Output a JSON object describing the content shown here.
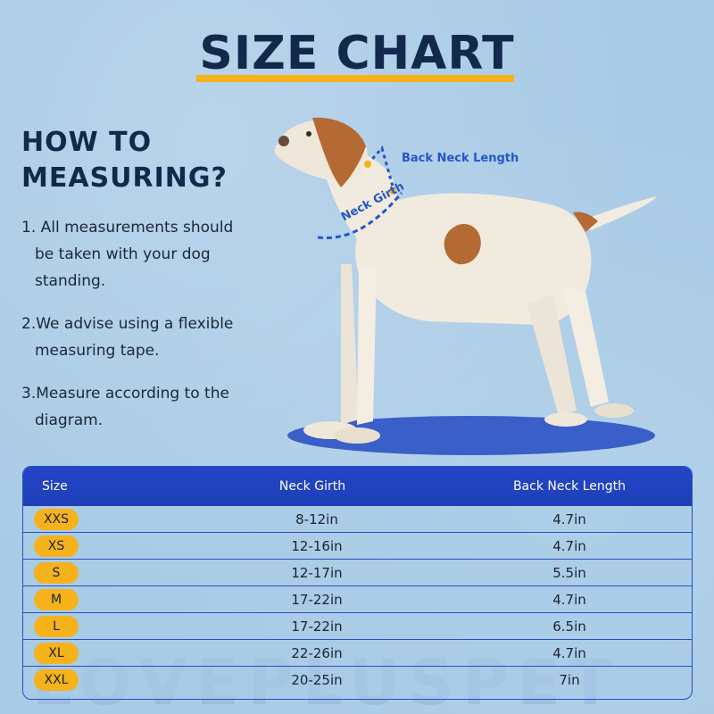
{
  "header": {
    "title": "SIZE CHART"
  },
  "instructions": {
    "heading_line1": "HOW TO",
    "heading_line2": "MEASURING?",
    "steps": [
      "1. All measurements should be taken with your dog standing.",
      "2.We advise using a flexible measuring tape.",
      "3.Measure according to the diagram."
    ]
  },
  "diagram": {
    "back_neck_label": "Back Neck Length",
    "neck_girth_label": "Neck Girth"
  },
  "table": {
    "columns": [
      "Size",
      "Neck Girth",
      "Back Neck Length"
    ],
    "rows": [
      {
        "size": "XXS",
        "neck_girth": "8-12in",
        "back_neck_length": "4.7in"
      },
      {
        "size": "XS",
        "neck_girth": "12-16in",
        "back_neck_length": "4.7in"
      },
      {
        "size": "S",
        "neck_girth": "12-17in",
        "back_neck_length": "5.5in"
      },
      {
        "size": "M",
        "neck_girth": "17-22in",
        "back_neck_length": "4.7in"
      },
      {
        "size": "L",
        "neck_girth": "17-22in",
        "back_neck_length": "6.5in"
      },
      {
        "size": "XL",
        "neck_girth": "22-26in",
        "back_neck_length": "4.7in"
      },
      {
        "size": "XXL",
        "neck_girth": "20-25in",
        "back_neck_length": "7in"
      }
    ]
  },
  "watermark": {
    "text": "LOVEPLUSPET"
  },
  "colors": {
    "background": "#a9cbe6",
    "title": "#13294b",
    "accent": "#f6b21a",
    "table_header": "#2446c7",
    "measure_line": "#2456c9"
  }
}
